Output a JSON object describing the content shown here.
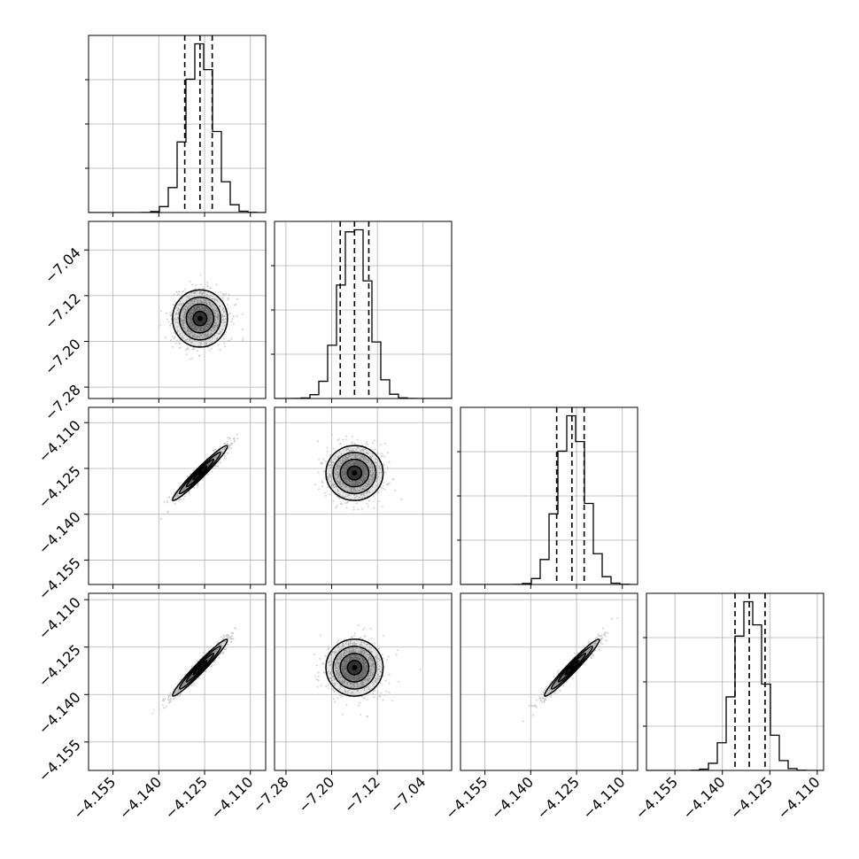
{
  "chart_data": {
    "type": "corner",
    "n_params": 4,
    "grid": true,
    "colors": {
      "line": "#000000",
      "grid": "#b0b0b0",
      "scatter": "#c8c8c8"
    },
    "params": [
      {
        "median": -4.1265,
        "q16": -4.1315,
        "q84": -4.1225,
        "sigma": 0.0045,
        "range": [
          -4.163,
          -4.105
        ],
        "ticks": [
          -4.155,
          -4.14,
          -4.125,
          -4.11
        ],
        "tick_labels": [
          "−4.155",
          "−4.140",
          "−4.125",
          "−4.110"
        ]
      },
      {
        "median": -7.16,
        "q16": -7.185,
        "q84": -7.135,
        "sigma": 0.025,
        "range": [
          -7.3,
          -6.99
        ],
        "ticks": [
          -7.28,
          -7.2,
          -7.12,
          -7.04
        ],
        "tick_labels": [
          "−7.28",
          "−7.20",
          "−7.12",
          "−7.04"
        ]
      },
      {
        "median": -4.1265,
        "q16": -4.1315,
        "q84": -4.1225,
        "sigma": 0.0045,
        "range": [
          -4.163,
          -4.105
        ],
        "ticks": [
          -4.155,
          -4.14,
          -4.125,
          -4.11
        ],
        "tick_labels": [
          "−4.155",
          "−4.140",
          "−4.125",
          "−4.110"
        ]
      },
      {
        "median": -4.1315,
        "q16": -4.136,
        "q84": -4.1265,
        "sigma": 0.0045,
        "range": [
          -4.164,
          -4.108
        ],
        "ticks": [
          -4.155,
          -4.14,
          -4.125,
          -4.11
        ],
        "tick_labels": [
          "−4.155",
          "−4.140",
          "−4.125",
          "−4.110"
        ]
      }
    ],
    "correlations": [
      [
        1,
        0,
        0.97,
        0.97
      ],
      [
        0,
        1,
        0,
        0
      ],
      [
        0.97,
        0,
        1,
        0.97
      ],
      [
        0.97,
        0,
        0.97,
        1
      ]
    ],
    "histogram_bins": 20,
    "quantiles": [
      0.16,
      0.5,
      0.84
    ]
  }
}
